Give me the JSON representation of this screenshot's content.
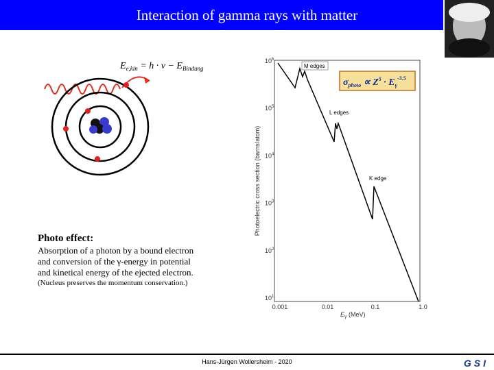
{
  "header": {
    "title": "Interaction of gamma rays with matter"
  },
  "diagram": {
    "formula": {
      "lhs": "E",
      "lhs_sub": "e,kin",
      "eq": " = h · ν − E",
      "rhs_sub": "Bindung"
    }
  },
  "figure": {
    "y_label": "Photoelectric cross section (barns/atom)",
    "y_ticks": [
      {
        "base": "10",
        "exp": "6"
      },
      {
        "base": "10",
        "exp": "5"
      },
      {
        "base": "10",
        "exp": "4"
      },
      {
        "base": "10",
        "exp": "3"
      },
      {
        "base": "10",
        "exp": "2"
      },
      {
        "base": "10",
        "exp": "1"
      }
    ],
    "x_ticks": [
      "0.001",
      "0.01",
      "0.1",
      "1.0"
    ],
    "x_label": {
      "symbol": "E",
      "sub": "γ",
      "unit": " (MeV)"
    },
    "annotations": [
      "M edges",
      "L edges",
      "K edge"
    ],
    "formula": {
      "sigma": "σ",
      "sigma_sub": "photo",
      "prop": " ∝ Z",
      "z_exp": "5",
      "dot": " · E",
      "e_sub": "γ",
      "e_exp": "-3.5"
    }
  },
  "text": {
    "heading": "Photo effect:",
    "lines": [
      "Absorption of a photon by a bound electron",
      "and conversion of the γ-energy in potential",
      "and kinetical energy of the ejected electron."
    ],
    "note": "(Nucleus preserves the momentum conservation.)"
  },
  "footer": {
    "author": "Hans-Jürgen Wollersheim - 2020",
    "logo": "GSI"
  }
}
